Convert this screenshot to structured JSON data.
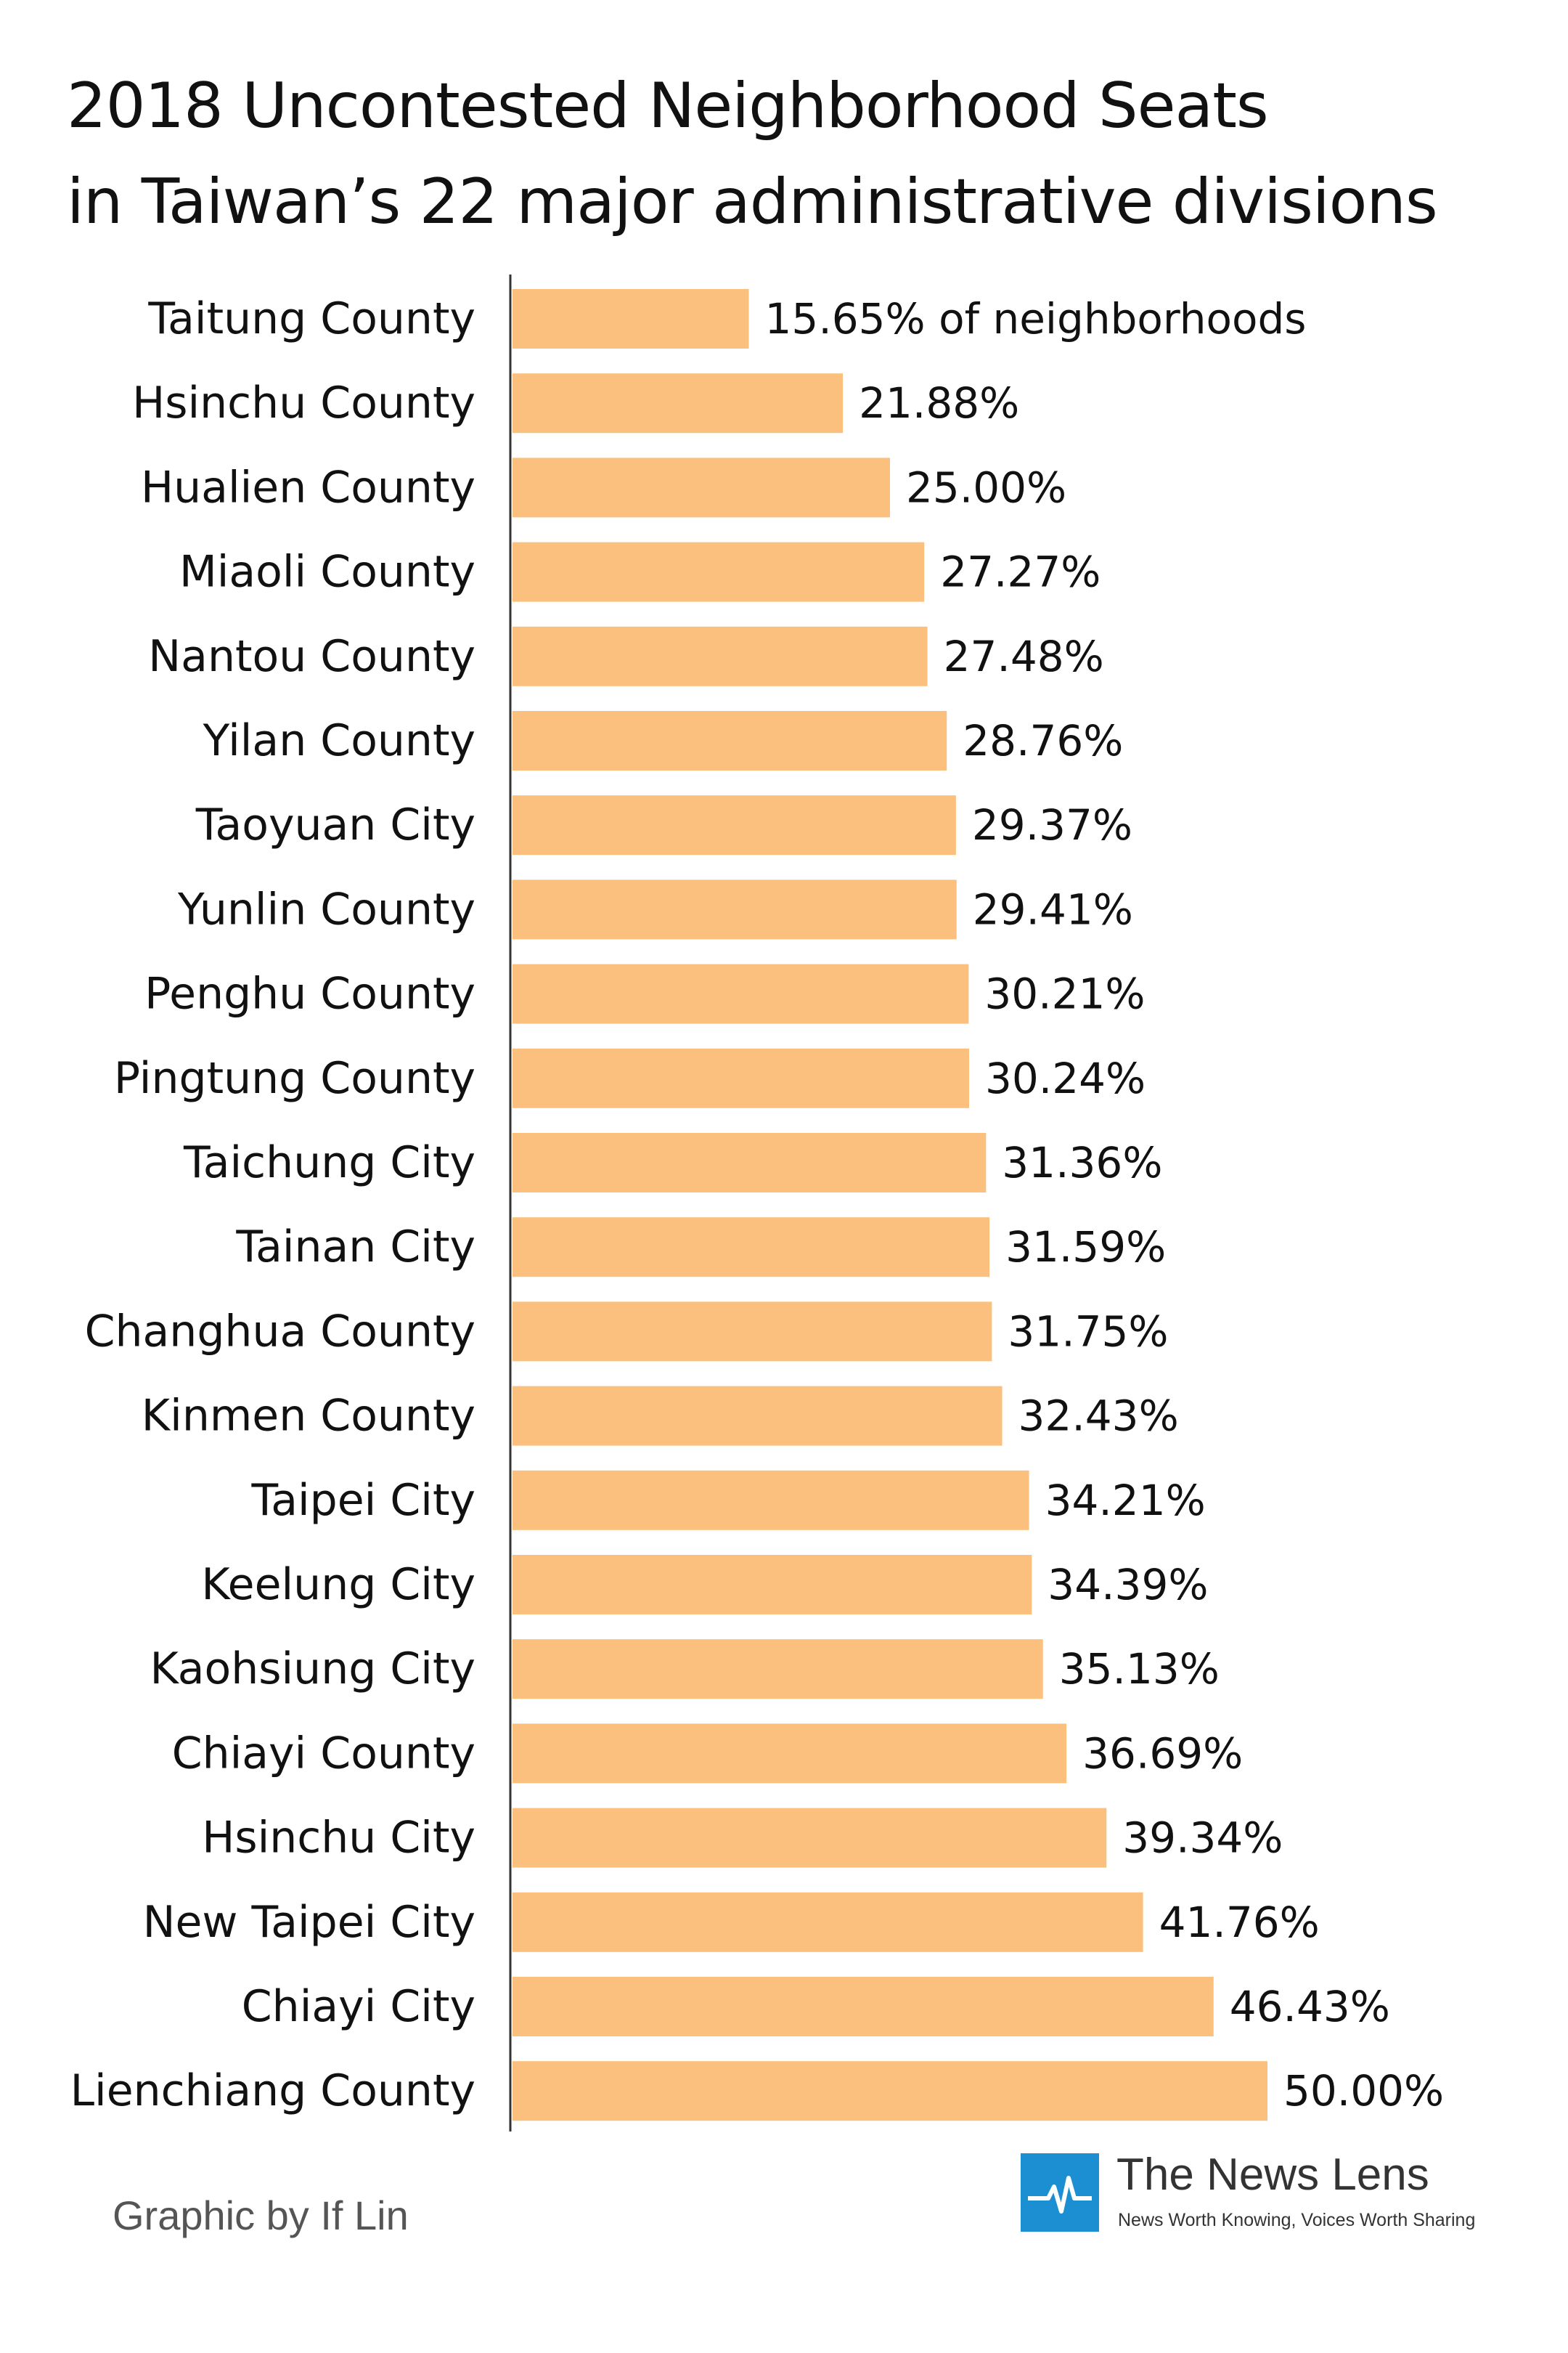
{
  "title_lines": [
    "2018 Uncontested Neighborhood Seats",
    "in Taiwan’s 22 major administrative divisions"
  ],
  "credit": "Graphic by If Lin",
  "brand": {
    "name": "The News Lens",
    "tagline": "News Worth Knowing, Voices Worth Sharing"
  },
  "colors": {
    "bar": "#fbc07d",
    "axis": "#333333",
    "text": "#111111",
    "logo": "#1b8fd2"
  },
  "chart_data": {
    "type": "bar",
    "orientation": "horizontal",
    "title": "2018 Uncontested Neighborhood Seats in Taiwan’s 22 major administrative divisions",
    "xlabel": "",
    "ylabel": "",
    "xlim": [
      0,
      50
    ],
    "grid": false,
    "categories": [
      "Taitung County",
      "Hsinchu County",
      "Hualien County",
      "Miaoli County",
      "Nantou County",
      "Yilan County",
      "Taoyuan City",
      "Yunlin County",
      "Penghu County",
      "Pingtung County",
      "Taichung City",
      "Tainan City",
      "Changhua County",
      "Kinmen County",
      "Taipei City",
      "Keelung City",
      "Kaohsiung City",
      "Chiayi County",
      "Hsinchu City",
      "New Taipei City",
      "Chiayi City",
      "Lienchiang County"
    ],
    "values": [
      15.65,
      21.88,
      25.0,
      27.27,
      27.48,
      28.76,
      29.37,
      29.41,
      30.21,
      30.24,
      31.36,
      31.59,
      31.75,
      32.43,
      34.21,
      34.39,
      35.13,
      36.69,
      39.34,
      41.76,
      46.43,
      50.0
    ],
    "value_labels": [
      "15.65% of neighborhoods",
      "21.88%",
      "25.00%",
      "27.27%",
      "27.48%",
      "28.76%",
      "29.37%",
      "29.41%",
      "30.21%",
      "30.24%",
      "31.36%",
      "31.59%",
      "31.75%",
      "32.43%",
      "34.21%",
      "34.39%",
      "35.13%",
      "36.69%",
      "39.34%",
      "41.76%",
      "46.43%",
      "50.00%"
    ]
  }
}
